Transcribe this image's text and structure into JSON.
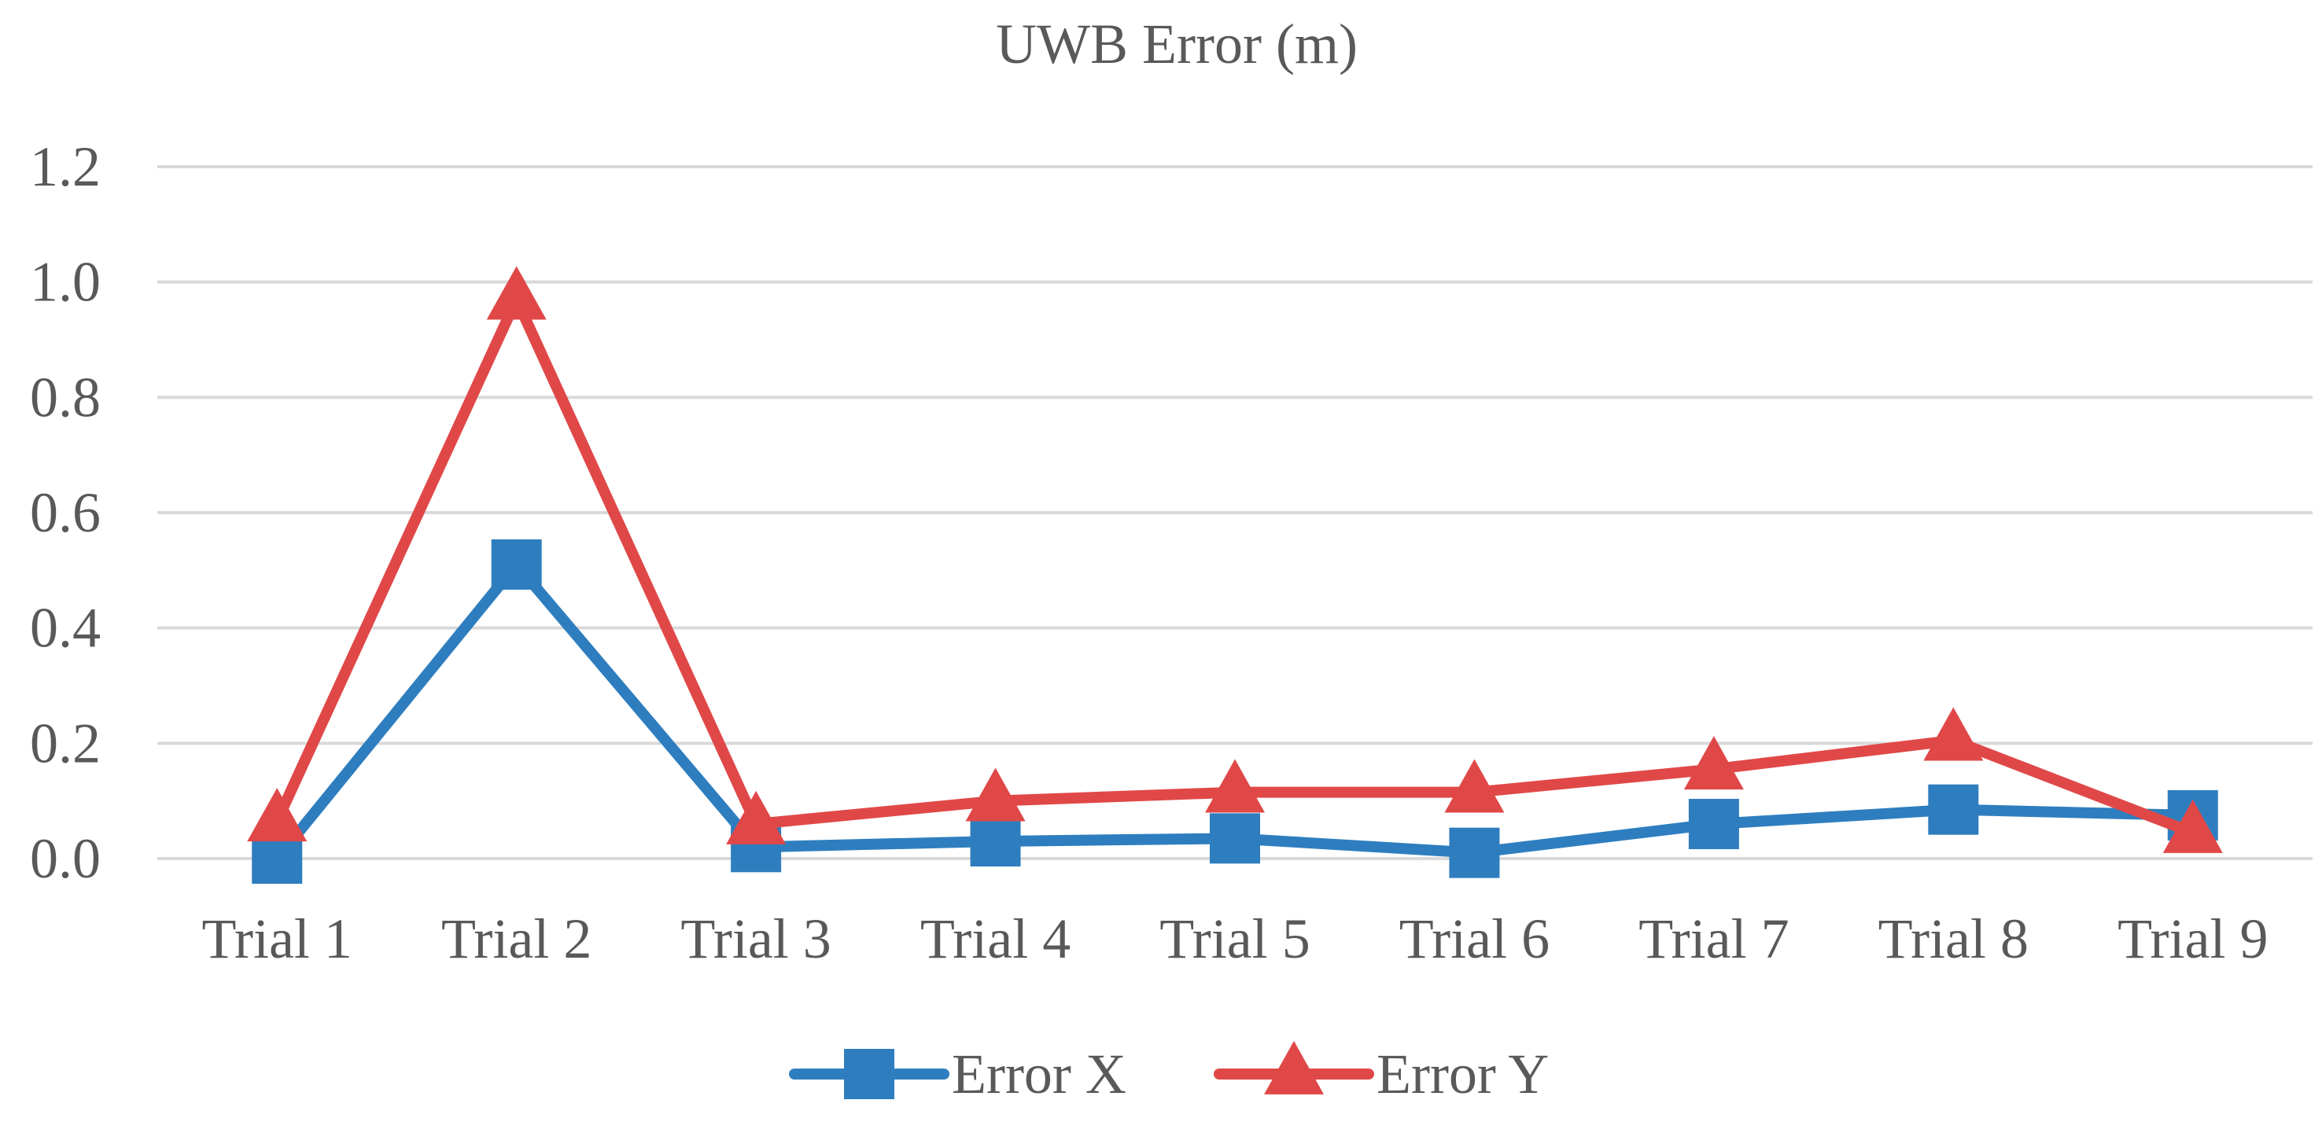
{
  "chart_data": {
    "type": "line",
    "title": "UWB Error (m)",
    "xlabel": "",
    "ylabel": "",
    "categories": [
      "Trial 1",
      "Trial 2",
      "Trial 3",
      "Trial 4",
      "Trial 5",
      "Trial 6",
      "Trial 7",
      "Trial 8",
      "Trial 9"
    ],
    "ylim": [
      0,
      1.2
    ],
    "yticks": [
      "0.0",
      "0.2",
      "0.4",
      "0.6",
      "0.8",
      "1.0",
      "1.2"
    ],
    "grid": true,
    "legend_position": "bottom",
    "series": [
      {
        "name": "Error X",
        "color": "#2e7ebf",
        "marker": "square",
        "values": [
          0.0,
          0.51,
          0.02,
          0.03,
          0.035,
          0.01,
          0.06,
          0.085,
          0.075
        ]
      },
      {
        "name": "Error Y",
        "color": "#e04848",
        "marker": "triangle",
        "values": [
          0.065,
          0.97,
          0.06,
          0.1,
          0.115,
          0.115,
          0.155,
          0.205,
          0.045
        ]
      }
    ]
  }
}
